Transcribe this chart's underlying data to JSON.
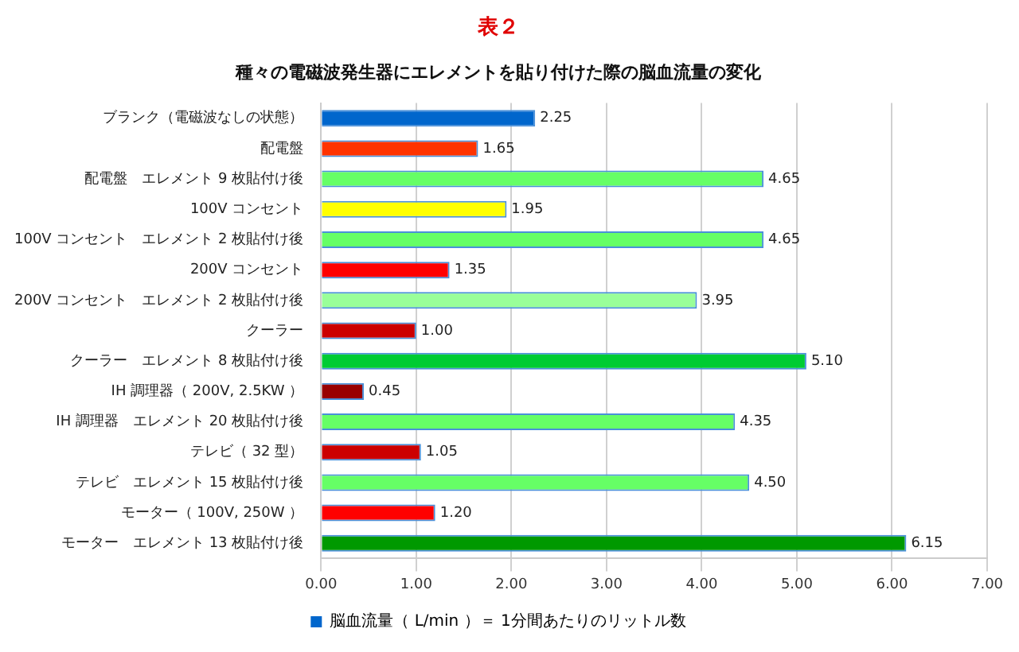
{
  "chart_data": {
    "type": "bar",
    "orientation": "horizontal",
    "title": "表２",
    "subtitle": "種々の電磁波発生器にエレメントを貼り付けた際の脳血流量の変化",
    "categories": [
      "ブランク（電磁波なしの状態）",
      "配電盤",
      "配電盤　エレメント 9 枚貼付け後",
      "100V コンセント",
      "100V コンセント　エレメント 2 枚貼付け後",
      "200V コンセント",
      "200V コンセント　エレメント 2 枚貼付け後",
      "クーラー",
      "クーラー　エレメント 8 枚貼付け後",
      "IH 調理器（ 200V, 2.5KW ）",
      "IH 調理器　エレメント 20 枚貼付け後",
      "テレビ（ 32 型）",
      "テレビ　エレメント 15 枚貼付け後",
      "モーター（ 100V, 250W ）",
      "モーター　エレメント 13 枚貼付け後"
    ],
    "series": [
      {
        "name": "脳血流量（ L/min ）＝ 1分間あたりのリットル数",
        "color": "#0066cc",
        "values": [
          2.25,
          1.65,
          4.65,
          1.95,
          4.65,
          1.35,
          3.95,
          1.0,
          5.1,
          0.45,
          4.35,
          1.05,
          4.5,
          1.2,
          6.15
        ],
        "colors": [
          "#0066cc",
          "#ff3300",
          "#66ff66",
          "#ffff00",
          "#66ff66",
          "#ff0000",
          "#99ff99",
          "#cc0000",
          "#00cc33",
          "#990000",
          "#66ff66",
          "#cc0000",
          "#66ff66",
          "#ff0000",
          "#009900"
        ],
        "value_labels": [
          "2.25",
          "1.65",
          "4.65",
          "1.95",
          "4.65",
          "1.35",
          "3.95",
          "1.00",
          "5.10",
          "0.45",
          "4.35",
          "1.05",
          "4.50",
          "1.20",
          "6.15"
        ]
      }
    ],
    "xlim": [
      0,
      7
    ],
    "xticks": [
      {
        "value": 0,
        "label": "0.00"
      },
      {
        "value": 1,
        "label": "1.00"
      },
      {
        "value": 2,
        "label": "2.00"
      },
      {
        "value": 3,
        "label": "3.00"
      },
      {
        "value": 4,
        "label": "4.00"
      },
      {
        "value": 5,
        "label": "5.00"
      },
      {
        "value": 6,
        "label": "6.00"
      },
      {
        "value": 7,
        "label": "7.00"
      }
    ],
    "grid": "x",
    "legend": "bottom"
  }
}
